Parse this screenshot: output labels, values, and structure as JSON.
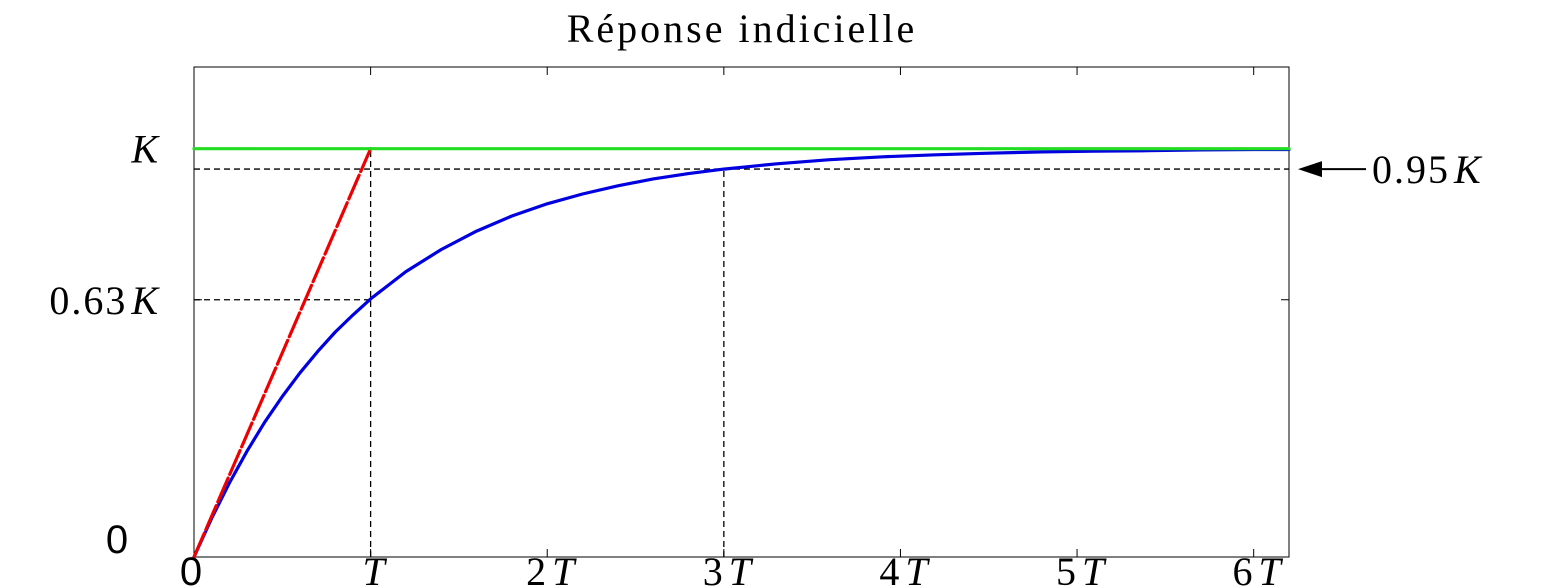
{
  "chart_data": {
    "type": "line",
    "title": "Réponse indicielle",
    "xlabel": "",
    "ylabel": "",
    "xlim": [
      0,
      6.2
    ],
    "ylim": [
      0,
      1.2
    ],
    "grid": false,
    "x_ticks": [
      {
        "value": 0,
        "coef": "0",
        "sym": ""
      },
      {
        "value": 1,
        "coef": "",
        "sym": "T"
      },
      {
        "value": 2,
        "coef": "2",
        "sym": "T"
      },
      {
        "value": 3,
        "coef": "3",
        "sym": "T"
      },
      {
        "value": 4,
        "coef": "4",
        "sym": "T"
      },
      {
        "value": 5,
        "coef": "5",
        "sym": "T"
      },
      {
        "value": 6,
        "coef": "6",
        "sym": "T"
      }
    ],
    "y_ticks": [
      {
        "value": 0,
        "coef": "0",
        "sym": ""
      },
      {
        "value": 0.63,
        "coef": "0.63",
        "sym": "K"
      },
      {
        "value": 1,
        "coef": "",
        "sym": "K"
      }
    ],
    "annotation": {
      "coef": "0.95",
      "sym": "K",
      "value": 0.95
    },
    "series": [
      {
        "color": "#0000e0",
        "x": [
          0,
          0.1,
          0.2,
          0.3,
          0.4,
          0.5,
          0.6,
          0.7,
          0.8,
          0.9,
          1.0,
          1.2,
          1.4,
          1.6,
          1.8,
          2.0,
          2.2,
          2.4,
          2.6,
          2.8,
          3.0,
          3.3,
          3.6,
          3.9,
          4.2,
          4.5,
          4.8,
          5.1,
          5.4,
          5.7,
          6.0,
          6.2
        ],
        "y": [
          0,
          0.095,
          0.181,
          0.259,
          0.33,
          0.393,
          0.451,
          0.503,
          0.551,
          0.593,
          0.632,
          0.699,
          0.753,
          0.798,
          0.835,
          0.865,
          0.889,
          0.909,
          0.926,
          0.939,
          0.95,
          0.963,
          0.973,
          0.98,
          0.985,
          0.989,
          0.992,
          0.994,
          0.995,
          0.997,
          0.998,
          0.998
        ]
      },
      {
        "color": "#ee0000",
        "dashed": true,
        "x": [
          0,
          1
        ],
        "y": [
          0,
          1
        ]
      },
      {
        "color": "#22dd22",
        "x": [
          0,
          6.2
        ],
        "y": [
          1,
          1
        ]
      }
    ],
    "guides": [
      {
        "x": [
          0,
          1
        ],
        "y": [
          1,
          1
        ]
      },
      {
        "x": [
          0,
          6.2
        ],
        "y": [
          0.95,
          0.95
        ]
      },
      {
        "x": [
          0,
          1
        ],
        "y": [
          0.63,
          0.63
        ]
      },
      {
        "x": [
          1,
          1
        ],
        "y": [
          0,
          1
        ]
      },
      {
        "x": [
          3,
          3
        ],
        "y": [
          0,
          0.95
        ]
      }
    ]
  }
}
